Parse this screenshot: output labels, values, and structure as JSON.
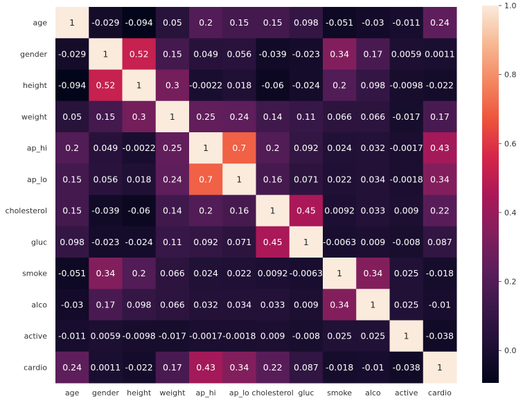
{
  "chart_data": {
    "type": "heatmap",
    "title": "",
    "xlabel": "",
    "ylabel": "",
    "rows": [
      "age",
      "gender",
      "height",
      "weight",
      "ap_hi",
      "ap_lo",
      "cholesterol",
      "gluc",
      "smoke",
      "alco",
      "active",
      "cardio"
    ],
    "columns": [
      "age",
      "gender",
      "height",
      "weight",
      "ap_hi",
      "ap_lo",
      "cholesterol",
      "gluc",
      "smoke",
      "alco",
      "active",
      "cardio"
    ],
    "values": [
      [
        1,
        -0.029,
        -0.094,
        0.05,
        0.2,
        0.15,
        0.15,
        0.098,
        -0.051,
        -0.03,
        -0.011,
        0.24
      ],
      [
        -0.029,
        1,
        0.52,
        0.15,
        0.049,
        0.056,
        -0.039,
        -0.023,
        0.34,
        0.17,
        0.0059,
        0.0011
      ],
      [
        -0.094,
        0.52,
        1,
        0.3,
        -0.0022,
        0.018,
        -0.06,
        -0.024,
        0.2,
        0.098,
        -0.0098,
        -0.022
      ],
      [
        0.05,
        0.15,
        0.3,
        1,
        0.25,
        0.24,
        0.14,
        0.11,
        0.066,
        0.066,
        -0.017,
        0.17
      ],
      [
        0.2,
        0.049,
        -0.0022,
        0.25,
        1,
        0.7,
        0.2,
        0.092,
        0.024,
        0.032,
        -0.0017,
        0.43
      ],
      [
        0.15,
        0.056,
        0.018,
        0.24,
        0.7,
        1,
        0.16,
        0.071,
        0.022,
        0.034,
        -0.0018,
        0.34
      ],
      [
        0.15,
        -0.039,
        -0.06,
        0.14,
        0.2,
        0.16,
        1,
        0.45,
        0.0092,
        0.033,
        0.009,
        0.22
      ],
      [
        0.098,
        -0.023,
        -0.024,
        0.11,
        0.092,
        0.071,
        0.45,
        1,
        -0.0063,
        0.009,
        -0.008,
        0.087
      ],
      [
        -0.051,
        0.34,
        0.2,
        0.066,
        0.024,
        0.022,
        0.0092,
        -0.0063,
        1,
        0.34,
        0.025,
        -0.018
      ],
      [
        -0.03,
        0.17,
        0.098,
        0.066,
        0.032,
        0.034,
        0.033,
        0.009,
        0.34,
        1,
        0.025,
        -0.01
      ],
      [
        -0.011,
        0.0059,
        -0.0098,
        -0.017,
        -0.0017,
        -0.0018,
        0.009,
        -0.008,
        0.025,
        0.025,
        1,
        -0.038
      ],
      [
        0.24,
        0.0011,
        -0.022,
        0.17,
        0.43,
        0.34,
        0.22,
        0.087,
        -0.018,
        -0.01,
        -0.038,
        1
      ]
    ],
    "labels": [
      [
        "1",
        "-0.029",
        "-0.094",
        "0.05",
        "0.2",
        "0.15",
        "0.15",
        "0.098",
        "-0.051",
        "-0.03",
        "-0.011",
        "0.24"
      ],
      [
        "-0.029",
        "1",
        "0.52",
        "0.15",
        "0.049",
        "0.056",
        "-0.039",
        "-0.023",
        "0.34",
        "0.17",
        "0.0059",
        "0.0011"
      ],
      [
        "-0.094",
        "0.52",
        "1",
        "0.3",
        "-0.0022",
        "0.018",
        "-0.06",
        "-0.024",
        "0.2",
        "0.098",
        "-0.0098",
        "-0.022"
      ],
      [
        "0.05",
        "0.15",
        "0.3",
        "1",
        "0.25",
        "0.24",
        "0.14",
        "0.11",
        "0.066",
        "0.066",
        "-0.017",
        "0.17"
      ],
      [
        "0.2",
        "0.049",
        "-0.0022",
        "0.25",
        "1",
        "0.7",
        "0.2",
        "0.092",
        "0.024",
        "0.032",
        "-0.0017",
        "0.43"
      ],
      [
        "0.15",
        "0.056",
        "0.018",
        "0.24",
        "0.7",
        "1",
        "0.16",
        "0.071",
        "0.022",
        "0.034",
        "-0.0018",
        "0.34"
      ],
      [
        "0.15",
        "-0.039",
        "-0.06",
        "0.14",
        "0.2",
        "0.16",
        "1",
        "0.45",
        "0.0092",
        "0.033",
        "0.009",
        "0.22"
      ],
      [
        "0.098",
        "-0.023",
        "-0.024",
        "0.11",
        "0.092",
        "0.071",
        "0.45",
        "1",
        "-0.0063",
        "0.009",
        "-0.008",
        "0.087"
      ],
      [
        "-0.051",
        "0.34",
        "0.2",
        "0.066",
        "0.024",
        "0.022",
        "0.0092",
        "-0.0063",
        "1",
        "0.34",
        "0.025",
        "-0.018"
      ],
      [
        "-0.03",
        "0.17",
        "0.098",
        "0.066",
        "0.032",
        "0.034",
        "0.033",
        "0.009",
        "0.34",
        "1",
        "0.025",
        "-0.01"
      ],
      [
        "-0.011",
        "0.0059",
        "-0.0098",
        "-0.017",
        "-0.0017",
        "-0.0018",
        "0.009",
        "-0.008",
        "0.025",
        "0.025",
        "1",
        "-0.038"
      ],
      [
        "0.24",
        "0.0011",
        "-0.022",
        "0.17",
        "0.43",
        "0.34",
        "0.22",
        "0.087",
        "-0.018",
        "-0.01",
        "-0.038",
        "1"
      ]
    ],
    "colorscale": "rocket",
    "color_range": [
      -0.094,
      1.0
    ],
    "colorbar_ticks": [
      0.0,
      0.2,
      0.4,
      0.6,
      0.8,
      1.0
    ],
    "colorbar_tick_labels": [
      "0.0",
      "0.2",
      "0.4",
      "0.6",
      "0.8",
      "1.0"
    ],
    "legend": "right",
    "grid": false
  }
}
